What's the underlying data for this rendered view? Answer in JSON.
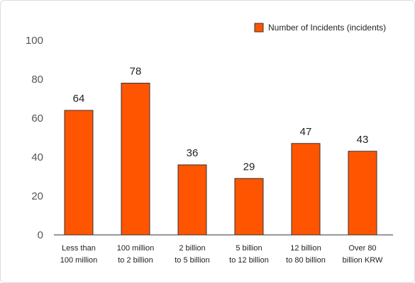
{
  "chart_data": {
    "type": "bar",
    "categories": [
      [
        "Less than",
        "100 million"
      ],
      [
        "100 million",
        "to 2 billion"
      ],
      [
        "2 billion",
        "to 5 billion"
      ],
      [
        "5 billion",
        "to 12 billion"
      ],
      [
        "12 billion",
        "to 80 billion"
      ],
      [
        "Over 80",
        "billion KRW"
      ]
    ],
    "series": [
      {
        "name": "Number of Incidents (incidents)",
        "values": [
          64,
          78,
          36,
          29,
          47,
          43
        ],
        "data_labels": [
          "64",
          "78",
          "36",
          "29",
          "47",
          "43"
        ],
        "color": "#ff5500"
      }
    ],
    "yticks": [
      0,
      20,
      40,
      60,
      80,
      100
    ],
    "ylim": [
      0,
      100
    ],
    "grid": false,
    "legend_position": "top-right",
    "title": "",
    "xlabel": "",
    "ylabel": ""
  }
}
